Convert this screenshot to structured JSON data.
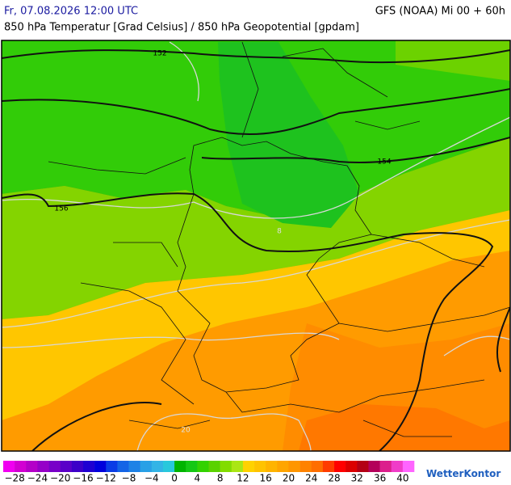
{
  "header": {
    "date": "Fr, 07.08.2026 12:00 UTC",
    "model": "GFS (NOAA) Mi 00 + 60h",
    "subtitle": "850 hPa Temperatur [Grad Celsius] / 850 hPa Geopotential [gpdam]"
  },
  "map": {
    "contour_labels": [
      152,
      154,
      156,
      20,
      8
    ]
  },
  "colorbar": {
    "range": [
      -30,
      42
    ],
    "colors": [
      "#f000f0",
      "#d200d2",
      "#b400c8",
      "#9600c8",
      "#7800c8",
      "#5a00c8",
      "#3c00c8",
      "#1e00d2",
      "#0000dc",
      "#0a3ce6",
      "#1464e6",
      "#1e82e6",
      "#28a0e6",
      "#32b4e6",
      "#28c8dc",
      "#00b400",
      "#14c814",
      "#32d200",
      "#5ad200",
      "#82dc00",
      "#aae614",
      "#ffd200",
      "#ffc300",
      "#ffb400",
      "#ffa500",
      "#ff9600",
      "#ff8200",
      "#ff6e00",
      "#ff3c00",
      "#ff0000",
      "#dc0000",
      "#b40014",
      "#b4005a",
      "#dc1e8c",
      "#f03cc8",
      "#ff64ff"
    ],
    "ticks": [
      {
        "value": -28,
        "label": "−28"
      },
      {
        "value": -24,
        "label": "−24"
      },
      {
        "value": -20,
        "label": "−20"
      },
      {
        "value": -16,
        "label": "−16"
      },
      {
        "value": -12,
        "label": "−12"
      },
      {
        "value": -8,
        "label": "−8"
      },
      {
        "value": -4,
        "label": "−4"
      },
      0,
      4,
      8,
      12,
      16,
      20,
      24,
      28,
      32,
      36,
      40
    ]
  },
  "logo": "WetterKontor"
}
